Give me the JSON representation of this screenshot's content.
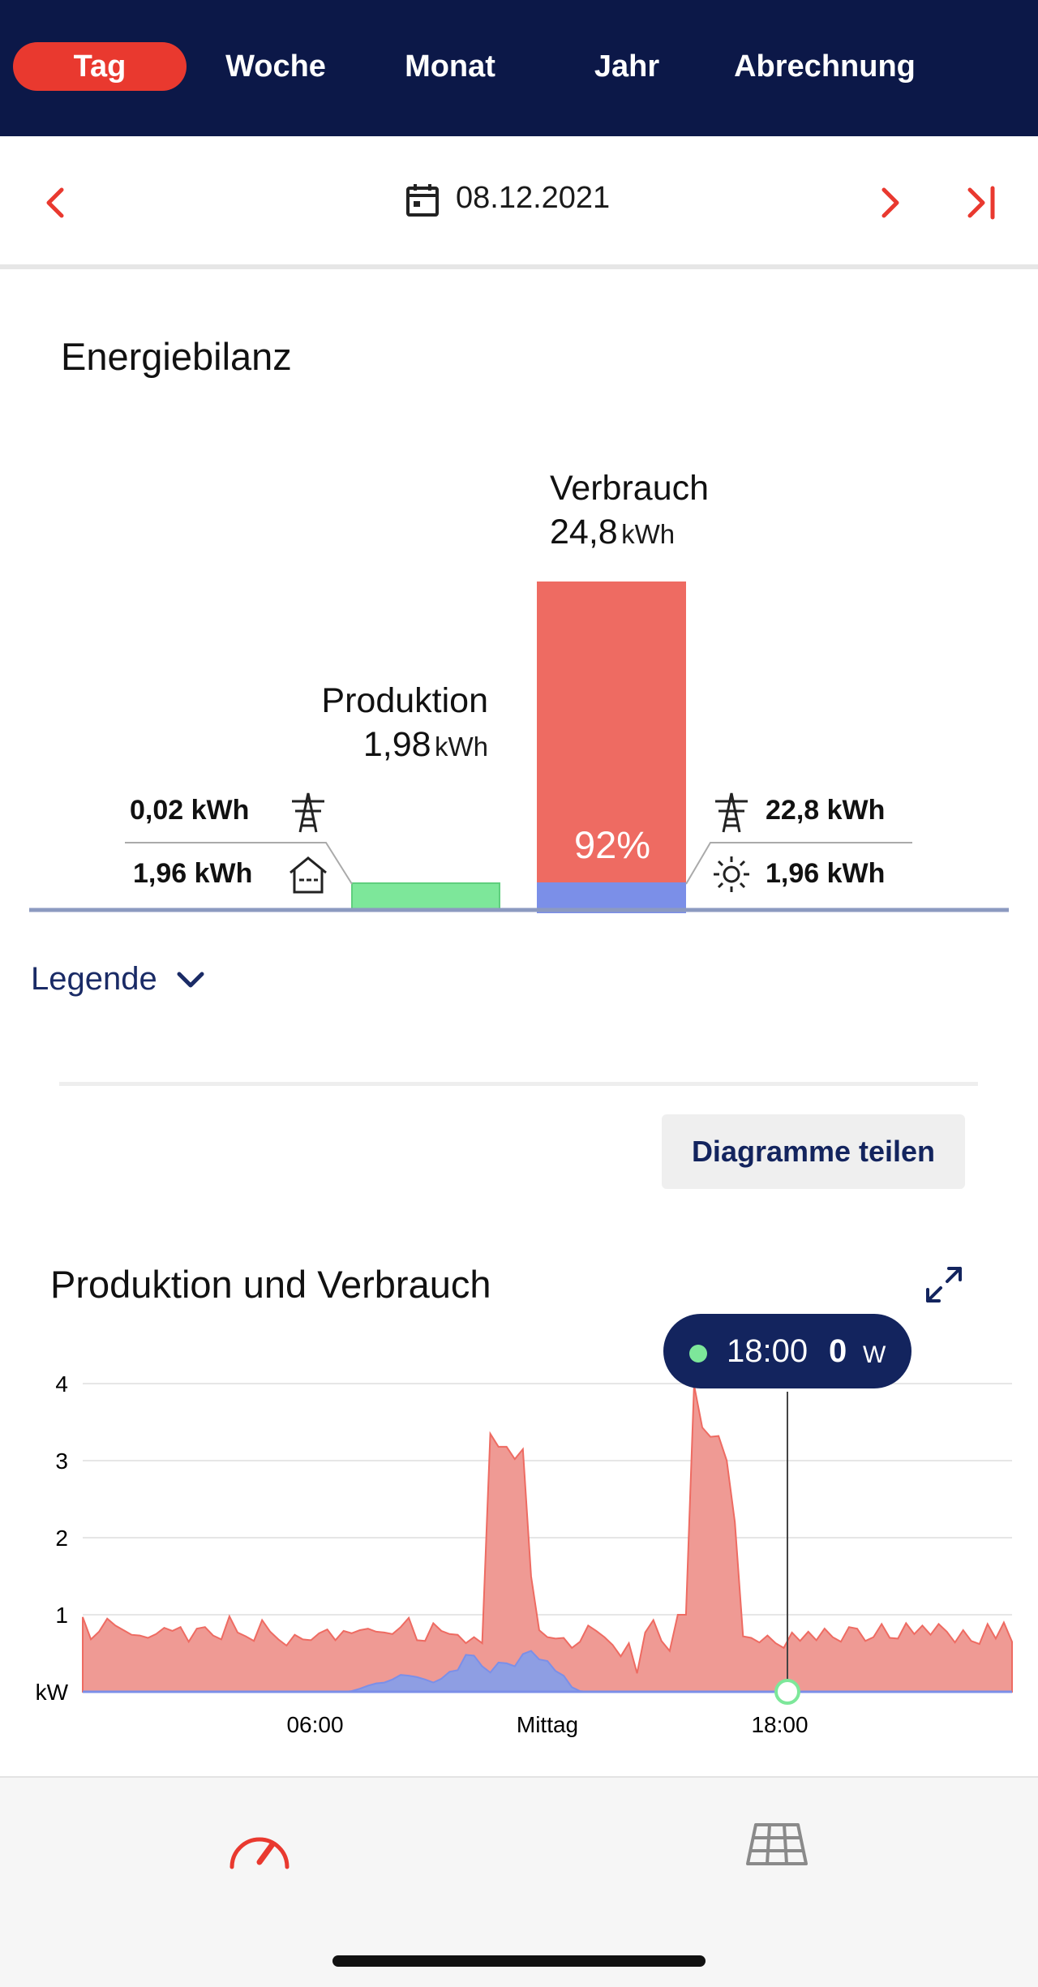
{
  "nav": {
    "tabs": [
      {
        "label": "Tag",
        "active": true
      },
      {
        "label": "Woche",
        "active": false
      },
      {
        "label": "Monat",
        "active": false
      },
      {
        "label": "Jahr",
        "active": false
      },
      {
        "label": "Abrechnung",
        "active": false
      }
    ]
  },
  "datebar": {
    "date": "08.12.2021"
  },
  "energy": {
    "title": "Energiebilanz",
    "produktion": {
      "label": "Produktion",
      "value": "1,98",
      "unit": "kWh"
    },
    "verbrauch": {
      "label": "Verbrauch",
      "value": "24,8",
      "unit": "kWh",
      "share_label": "92%",
      "self_share_fraction": 0.08
    },
    "left": {
      "grid": "0,02 kWh",
      "home": "1,96 kWh"
    },
    "right": {
      "grid": "22,8 kWh",
      "solar": "1,96 kWh"
    }
  },
  "legend": {
    "label": "Legende"
  },
  "share": {
    "label": "Diagramme teilen"
  },
  "chart": {
    "title": "Produktion und Verbrauch",
    "tooltip": {
      "time": "18:00",
      "value": "0",
      "unit": "W"
    }
  },
  "colors": {
    "nav_bg": "#0c1848",
    "accent": "#e9392f",
    "consumption": "#ee6b62",
    "production": "#7b8fe8",
    "green": "#7de79a"
  },
  "chart_data": {
    "type": "area",
    "ylabel": "kW",
    "ylim": [
      0,
      4
    ],
    "yticks": [
      1,
      2,
      3,
      4
    ],
    "xticks": [
      "06:00",
      "Mittag",
      "18:00"
    ],
    "x_range_hours": [
      0,
      24
    ],
    "series": [
      {
        "values": [
          0.97,
          0.68,
          0.78,
          0.95,
          0.86,
          0.8,
          0.74,
          0.73,
          0.7,
          0.75,
          0.83,
          0.79,
          0.84,
          0.65,
          0.82,
          0.84,
          0.73,
          0.68,
          0.98,
          0.77,
          0.72,
          0.66,
          0.93,
          0.78,
          0.68,
          0.6,
          0.74,
          0.68,
          0.67,
          0.76,
          0.81,
          0.67,
          0.79,
          0.76,
          0.8,
          0.82,
          0.78,
          0.77,
          0.75,
          0.84,
          0.96,
          0.67,
          0.66,
          0.89,
          0.79,
          0.75,
          0.74,
          0.63,
          0.71,
          0.63,
          3.35,
          3.18,
          3.18,
          3.02,
          3.15,
          1.5,
          0.8,
          0.71,
          0.69,
          0.7,
          0.57,
          0.65,
          0.86,
          0.79,
          0.71,
          0.61,
          0.46,
          0.63,
          0.24,
          0.77,
          0.93,
          0.66,
          0.53,
          1.0,
          1.0,
          3.98,
          3.43,
          3.31,
          3.32,
          3.0,
          2.2,
          0.72,
          0.7,
          0.64,
          0.73,
          0.63,
          0.57,
          0.77,
          0.66,
          0.78,
          0.67,
          0.82,
          0.71,
          0.65,
          0.84,
          0.82,
          0.66,
          0.71,
          0.88,
          0.7,
          0.69,
          0.89,
          0.75,
          0.86,
          0.74,
          0.88,
          0.78,
          0.64,
          0.8,
          0.66,
          0.62,
          0.88,
          0.69,
          0.9,
          0.65
        ]
      },
      {
        "values": [
          0,
          0,
          0,
          0,
          0,
          0,
          0,
          0,
          0,
          0,
          0,
          0,
          0,
          0,
          0,
          0,
          0,
          0,
          0,
          0,
          0,
          0,
          0,
          0,
          0,
          0,
          0,
          0,
          0,
          0,
          0,
          0,
          0,
          0.01,
          0.04,
          0.08,
          0.11,
          0.12,
          0.16,
          0.22,
          0.21,
          0.19,
          0.16,
          0.12,
          0.17,
          0.26,
          0.28,
          0.48,
          0.47,
          0.33,
          0.25,
          0.38,
          0.37,
          0.33,
          0.49,
          0.53,
          0.42,
          0.4,
          0.27,
          0.21,
          0.06,
          0.01,
          0,
          0,
          0,
          0,
          0,
          0,
          0,
          0,
          0,
          0,
          0,
          0,
          0,
          0,
          0,
          0,
          0,
          0,
          0,
          0,
          0,
          0,
          0,
          0,
          0,
          0,
          0,
          0,
          0,
          0,
          0,
          0,
          0,
          0,
          0,
          0,
          0,
          0,
          0,
          0,
          0,
          0,
          0,
          0,
          0,
          0,
          0,
          0,
          0,
          0,
          0,
          0,
          0
        ]
      }
    ]
  }
}
